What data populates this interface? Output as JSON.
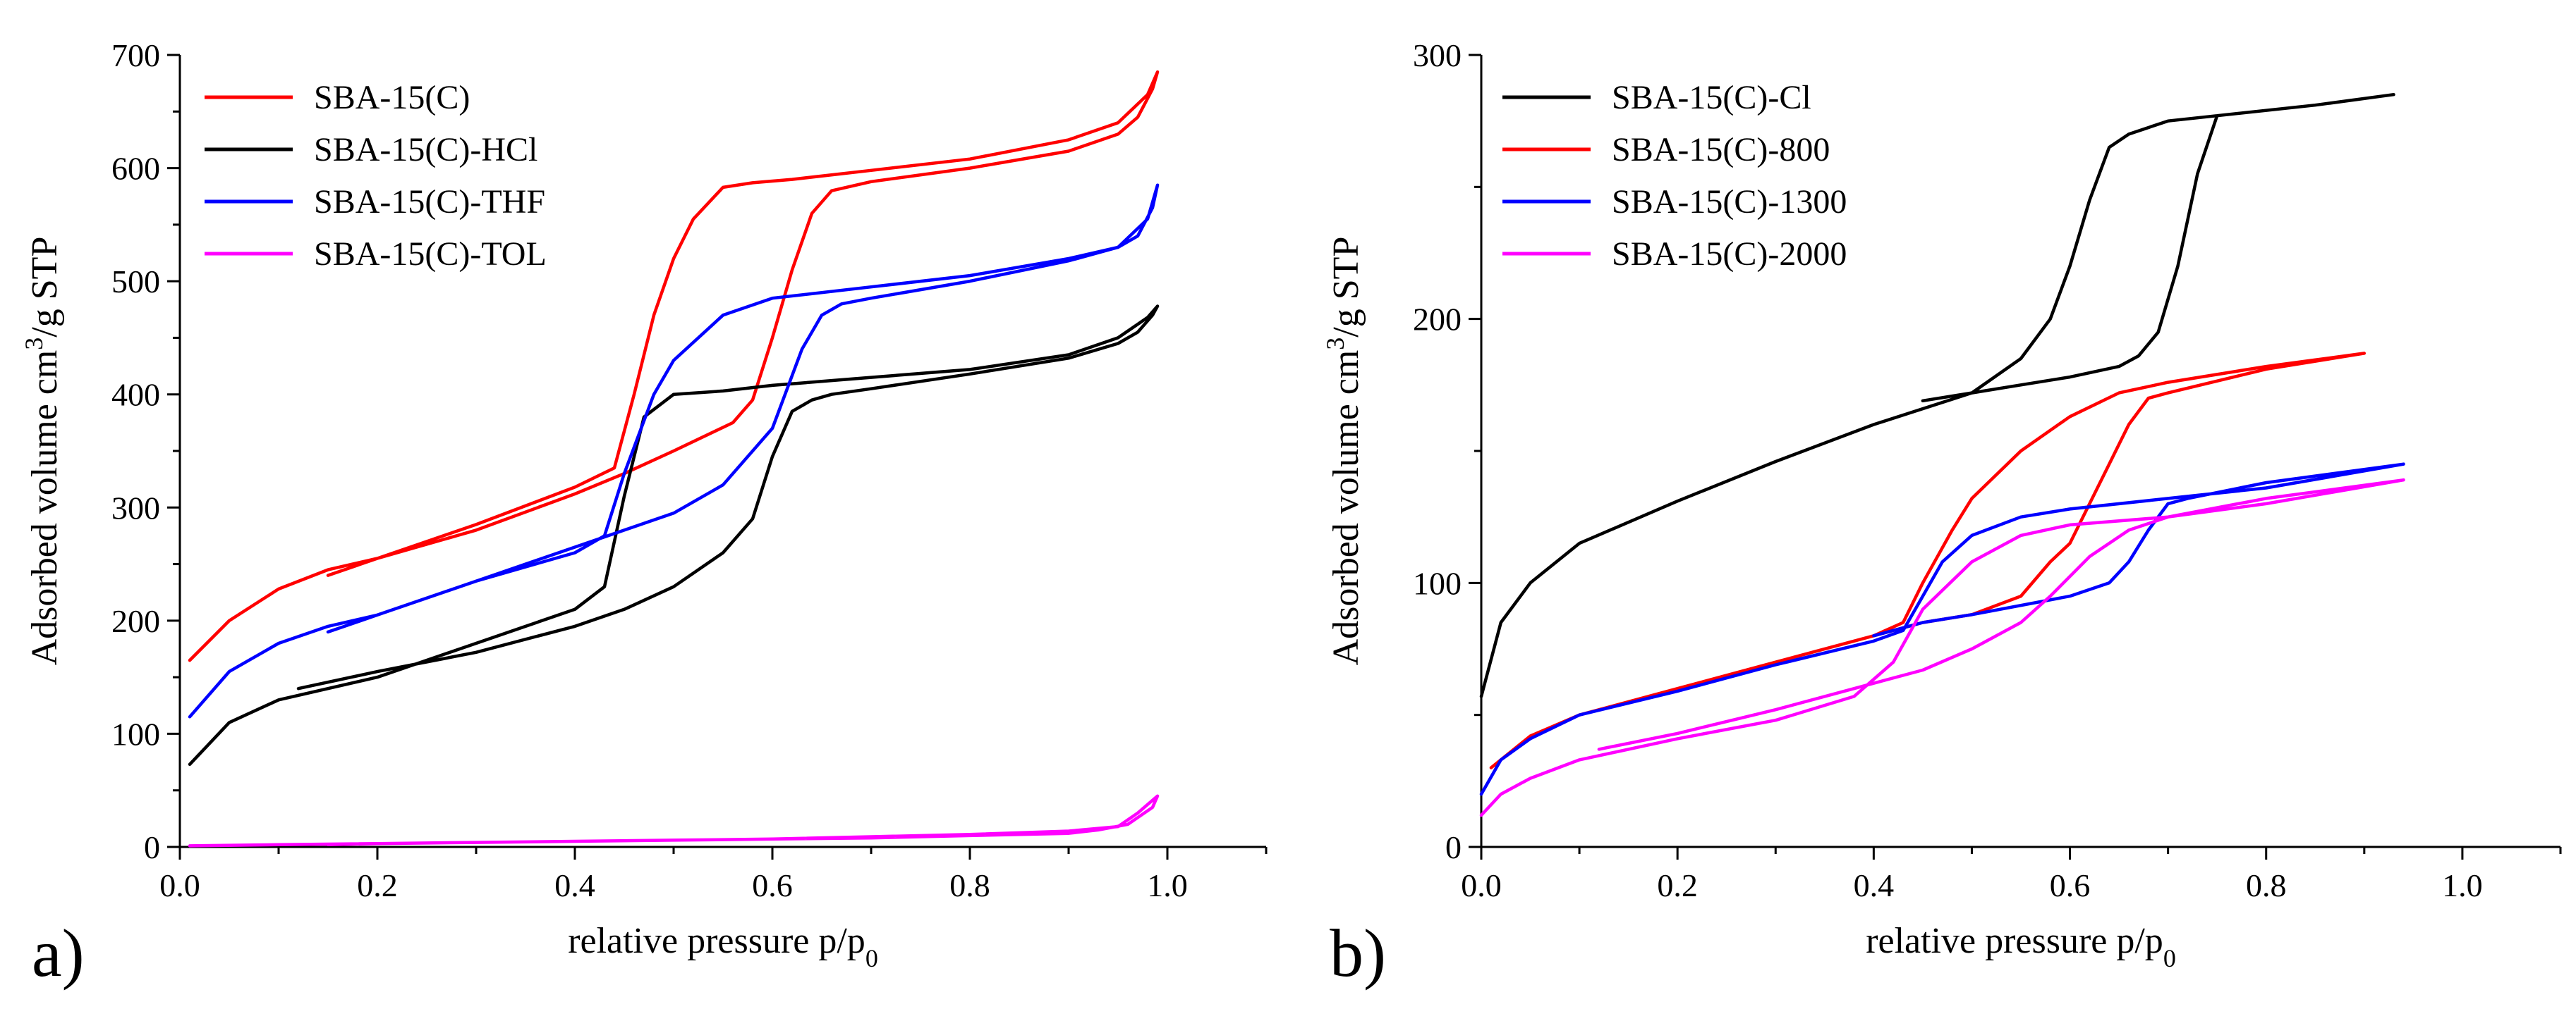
{
  "chart_data": [
    {
      "type": "line",
      "panel_label": "a)",
      "title": "",
      "xlabel": "relative pressure p/p",
      "xlabel_sub": "0",
      "ylabel_pre": "Adsorbed volume cm",
      "ylabel_sup": "3",
      "ylabel_post": "/g STP",
      "xlim": [
        0.0,
        1.1
      ],
      "ylim": [
        0,
        700
      ],
      "xticks": [
        0.0,
        0.2,
        0.4,
        0.6,
        0.8,
        1.0
      ],
      "yticks": [
        0,
        100,
        200,
        300,
        400,
        500,
        600,
        700
      ],
      "xtick_labels": [
        "0.0",
        "0.2",
        "0.4",
        "0.6",
        "0.8",
        "1.0"
      ],
      "ytick_labels": [
        "0",
        "100",
        "200",
        "300",
        "400",
        "500",
        "600",
        "700"
      ],
      "legend_position": "top-left",
      "series": [
        {
          "name": "SBA-15(C)",
          "color": "#ff0000",
          "x": [
            0.01,
            0.05,
            0.1,
            0.15,
            0.2,
            0.3,
            0.4,
            0.44,
            0.46,
            0.48,
            0.5,
            0.52,
            0.55,
            0.58,
            0.62,
            0.7,
            0.8,
            0.9,
            0.95,
            0.98,
            0.99,
            0.985,
            0.97,
            0.95,
            0.9,
            0.8,
            0.7,
            0.66,
            0.64,
            0.62,
            0.6,
            0.58,
            0.56,
            0.5,
            0.45,
            0.4,
            0.3,
            0.2,
            0.15
          ],
          "y": [
            165,
            200,
            228,
            245,
            255,
            285,
            318,
            335,
            400,
            470,
            520,
            555,
            583,
            587,
            590,
            598,
            608,
            625,
            640,
            665,
            685,
            670,
            645,
            630,
            615,
            600,
            588,
            580,
            560,
            510,
            450,
            395,
            375,
            350,
            330,
            312,
            280,
            255,
            240
          ]
        },
        {
          "name": "SBA-15(C)-HCl",
          "color": "#000000",
          "x": [
            0.01,
            0.05,
            0.1,
            0.15,
            0.2,
            0.3,
            0.4,
            0.43,
            0.45,
            0.47,
            0.5,
            0.55,
            0.6,
            0.7,
            0.8,
            0.9,
            0.95,
            0.98,
            0.99,
            0.985,
            0.97,
            0.95,
            0.9,
            0.8,
            0.7,
            0.66,
            0.64,
            0.62,
            0.6,
            0.58,
            0.55,
            0.5,
            0.45,
            0.4,
            0.3,
            0.2,
            0.12
          ],
          "y": [
            73,
            110,
            130,
            140,
            150,
            180,
            210,
            230,
            310,
            380,
            400,
            403,
            408,
            415,
            422,
            435,
            450,
            468,
            478,
            470,
            455,
            445,
            432,
            418,
            405,
            400,
            395,
            385,
            345,
            290,
            260,
            230,
            210,
            195,
            172,
            155,
            140
          ]
        },
        {
          "name": "SBA-15(C)-THF",
          "color": "#0000ff",
          "x": [
            0.01,
            0.05,
            0.1,
            0.15,
            0.2,
            0.3,
            0.4,
            0.43,
            0.45,
            0.48,
            0.5,
            0.55,
            0.6,
            0.7,
            0.8,
            0.9,
            0.95,
            0.98,
            0.99,
            0.985,
            0.97,
            0.95,
            0.9,
            0.8,
            0.7,
            0.67,
            0.65,
            0.63,
            0.6,
            0.55,
            0.5,
            0.4,
            0.3,
            0.2,
            0.15
          ],
          "y": [
            115,
            155,
            180,
            195,
            205,
            235,
            260,
            275,
            330,
            400,
            430,
            470,
            485,
            495,
            505,
            520,
            530,
            555,
            585,
            565,
            540,
            530,
            518,
            500,
            485,
            480,
            470,
            440,
            370,
            320,
            295,
            265,
            235,
            205,
            190
          ]
        },
        {
          "name": "SBA-15(C)-TOL",
          "color": "#ff00ff",
          "x": [
            0.01,
            0.1,
            0.2,
            0.3,
            0.4,
            0.5,
            0.6,
            0.7,
            0.8,
            0.9,
            0.95,
            0.97,
            0.99,
            0.985,
            0.96,
            0.93,
            0.9,
            0.8,
            0.7,
            0.6,
            0.5,
            0.4,
            0.3,
            0.2,
            0.15
          ],
          "y": [
            1,
            2,
            3,
            4,
            5,
            6,
            7,
            9,
            11,
            14,
            18,
            30,
            45,
            35,
            20,
            15,
            12,
            10,
            8,
            7,
            6,
            5,
            4,
            3,
            2
          ]
        }
      ]
    },
    {
      "type": "line",
      "panel_label": "b)",
      "title": "",
      "xlabel": "relative pressure p/p",
      "xlabel_sub": "0",
      "ylabel_pre": "Adsorbed volume cm",
      "ylabel_sup": "3",
      "ylabel_post": "/g STP",
      "xlim": [
        0.0,
        1.1
      ],
      "ylim": [
        0,
        300
      ],
      "xticks": [
        0.0,
        0.2,
        0.4,
        0.6,
        0.8,
        1.0
      ],
      "yticks": [
        0,
        100,
        200,
        300
      ],
      "xtick_labels": [
        "0.0",
        "0.2",
        "0.4",
        "0.6",
        "0.8",
        "1.0"
      ],
      "ytick_labels": [
        "0",
        "100",
        "200",
        "300"
      ],
      "legend_position": "top-left",
      "series": [
        {
          "name": "SBA-15(C)-Cl",
          "color": "#000000",
          "x": [
            0.0,
            0.02,
            0.05,
            0.1,
            0.2,
            0.3,
            0.4,
            0.5,
            0.55,
            0.58,
            0.6,
            0.62,
            0.64,
            0.66,
            0.7,
            0.75,
            0.85,
            0.93,
            0.85,
            0.75,
            0.73,
            0.71,
            0.69,
            0.67,
            0.65,
            0.6,
            0.55,
            0.5,
            0.45
          ],
          "y": [
            57,
            85,
            100,
            115,
            131,
            146,
            160,
            172,
            185,
            200,
            220,
            245,
            265,
            270,
            275,
            277,
            281,
            285,
            281,
            277,
            255,
            220,
            195,
            186,
            182,
            178,
            175,
            172,
            169
          ]
        },
        {
          "name": "SBA-15(C)-800",
          "color": "#ff0000",
          "x": [
            0.01,
            0.05,
            0.1,
            0.2,
            0.3,
            0.4,
            0.43,
            0.45,
            0.48,
            0.5,
            0.55,
            0.6,
            0.65,
            0.7,
            0.8,
            0.9,
            0.8,
            0.7,
            0.68,
            0.66,
            0.64,
            0.62,
            0.6,
            0.58,
            0.55,
            0.5,
            0.45,
            0.4
          ],
          "y": [
            30,
            42,
            50,
            60,
            70,
            80,
            85,
            100,
            120,
            132,
            150,
            163,
            172,
            176,
            182,
            187,
            181,
            172,
            170,
            160,
            145,
            130,
            115,
            108,
            95,
            88,
            85,
            80
          ]
        },
        {
          "name": "SBA-15(C)-1300",
          "color": "#0000ff",
          "x": [
            0.0,
            0.02,
            0.05,
            0.1,
            0.2,
            0.3,
            0.4,
            0.43,
            0.45,
            0.47,
            0.5,
            0.55,
            0.6,
            0.7,
            0.8,
            0.94,
            0.8,
            0.72,
            0.7,
            0.68,
            0.66,
            0.64,
            0.6,
            0.5,
            0.45,
            0.4
          ],
          "y": [
            20,
            33,
            41,
            50,
            59,
            69,
            78,
            82,
            95,
            108,
            118,
            125,
            128,
            132,
            136,
            145,
            138,
            132,
            130,
            120,
            108,
            100,
            95,
            88,
            85,
            80
          ]
        },
        {
          "name": "SBA-15(C)-2000",
          "color": "#ff00ff",
          "x": [
            0.0,
            0.02,
            0.05,
            0.1,
            0.2,
            0.3,
            0.38,
            0.42,
            0.45,
            0.5,
            0.55,
            0.6,
            0.7,
            0.8,
            0.94,
            0.8,
            0.7,
            0.66,
            0.62,
            0.58,
            0.55,
            0.5,
            0.45,
            0.4,
            0.3,
            0.2,
            0.12
          ],
          "y": [
            12,
            20,
            26,
            33,
            41,
            48,
            57,
            70,
            90,
            108,
            118,
            122,
            125,
            130,
            139,
            132,
            125,
            120,
            110,
            95,
            85,
            75,
            67,
            62,
            52,
            43,
            37
          ]
        }
      ]
    }
  ]
}
